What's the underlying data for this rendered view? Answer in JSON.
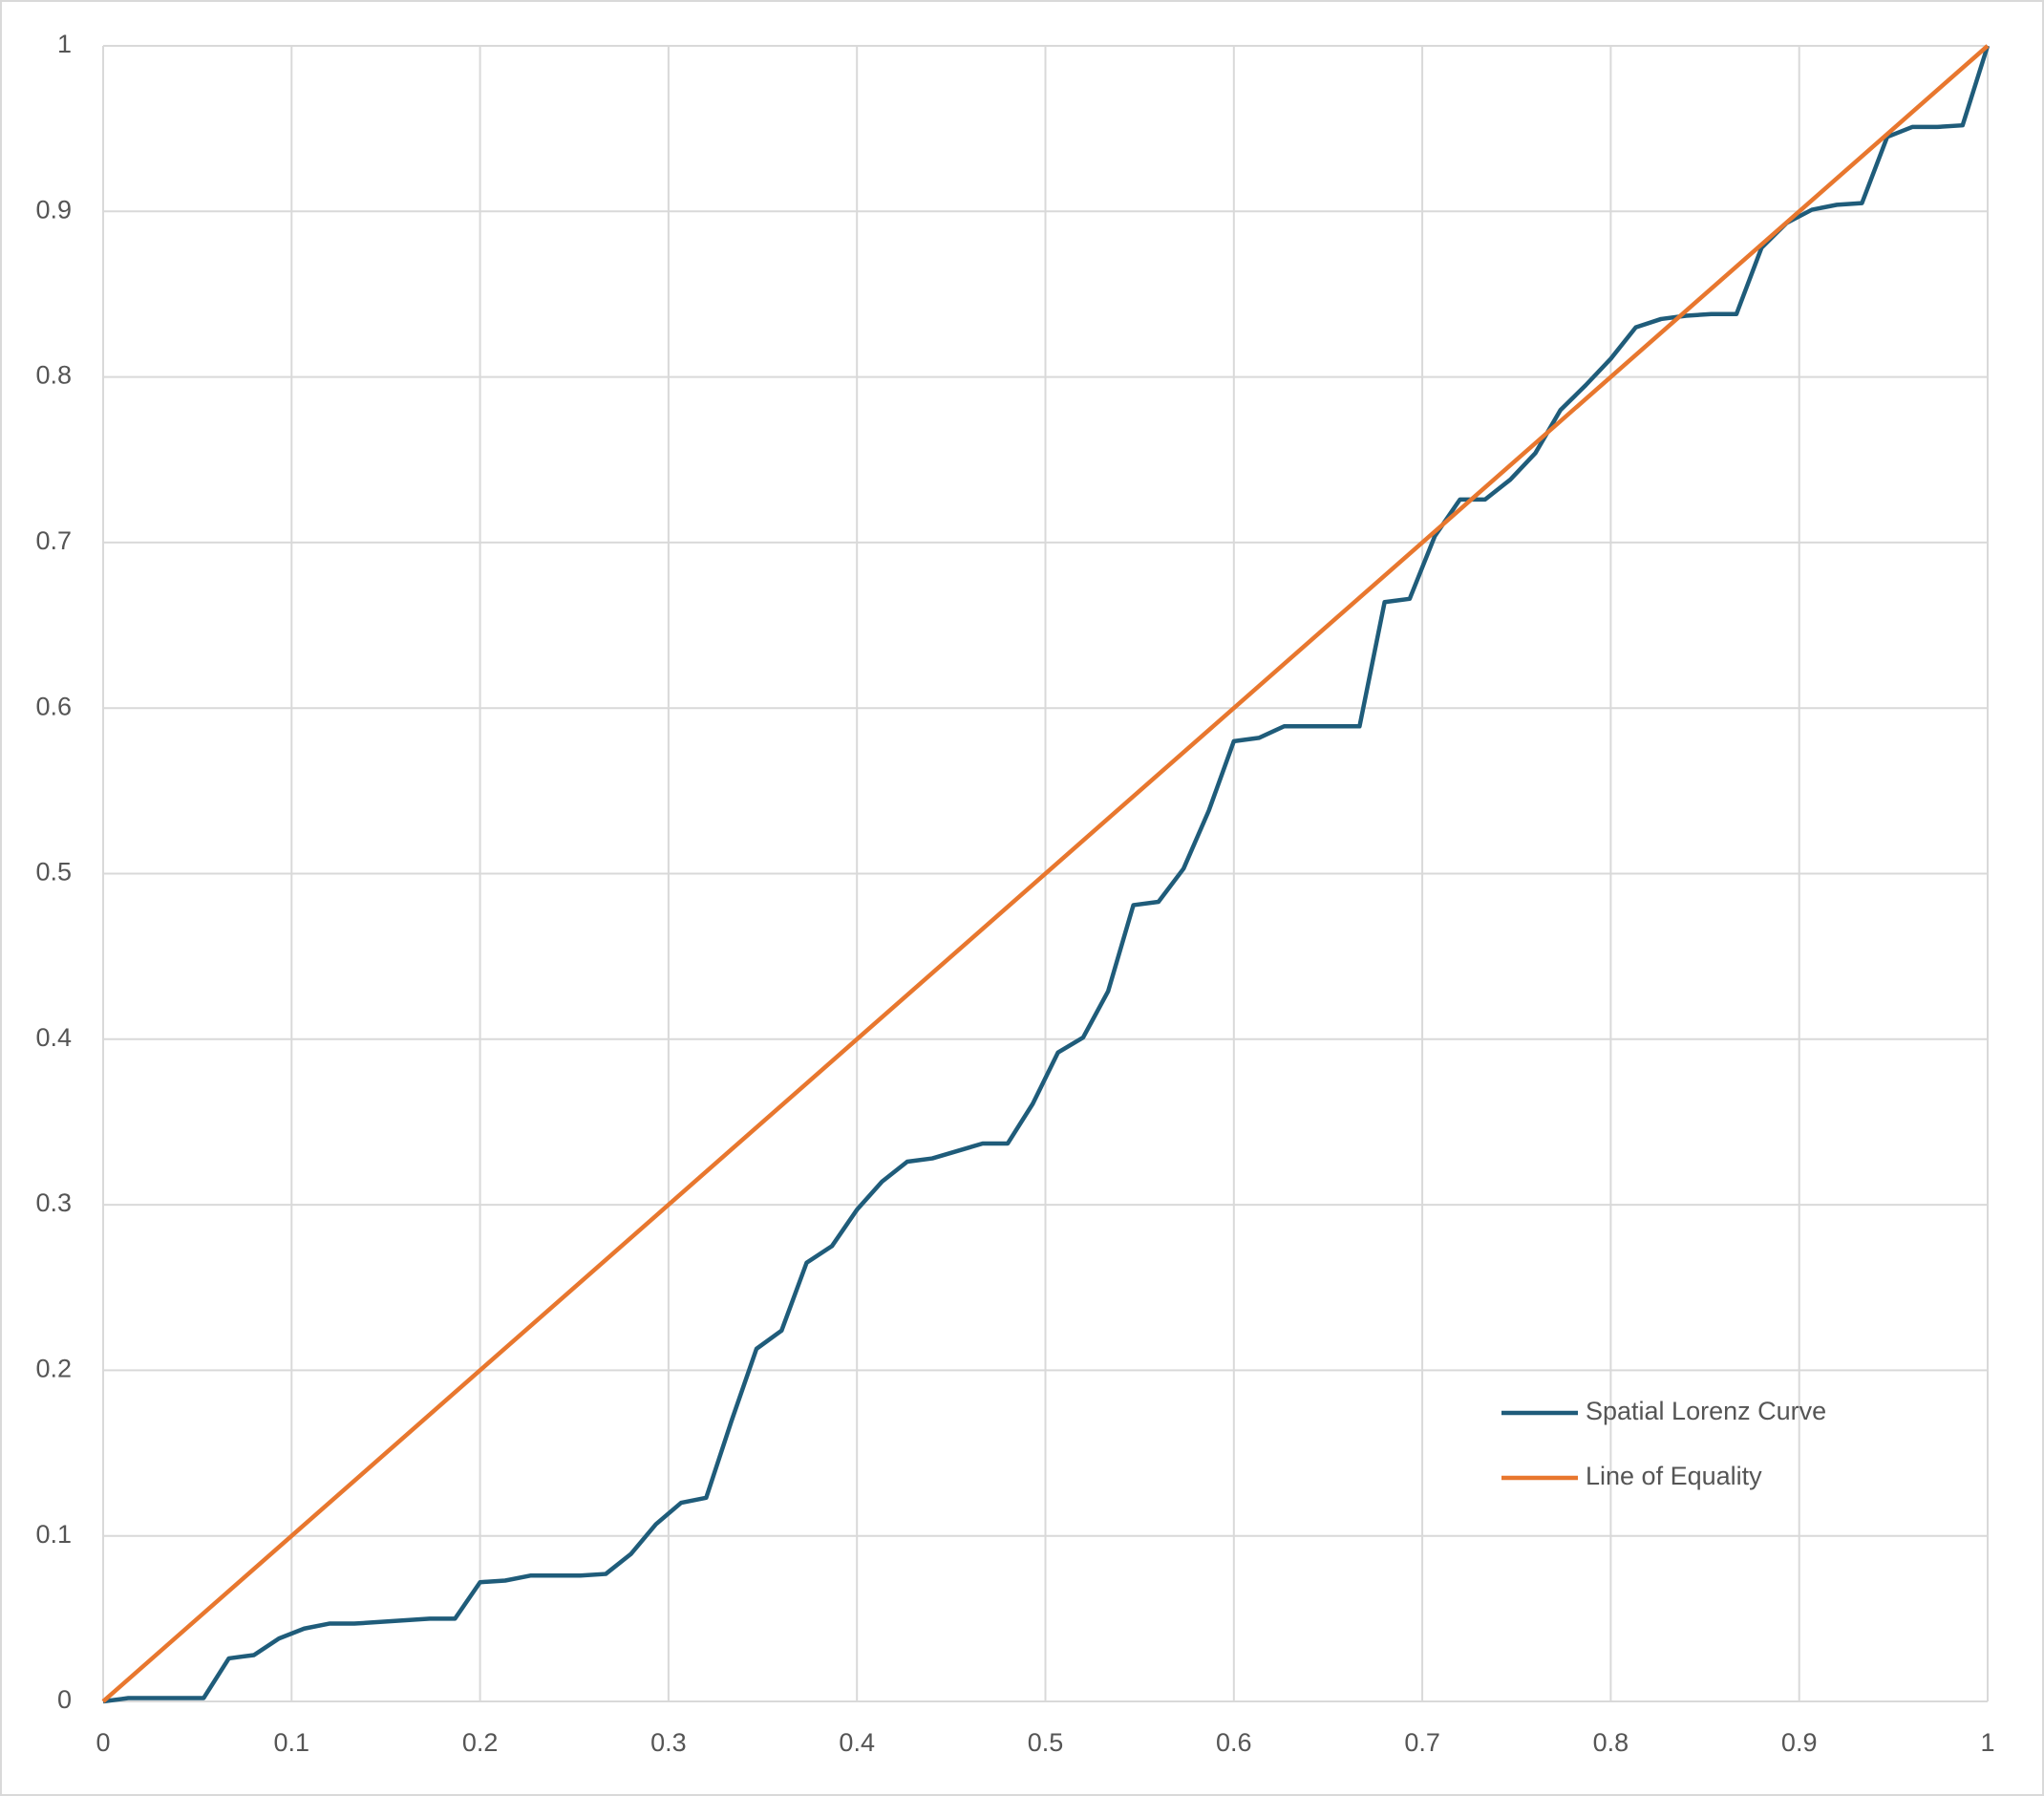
{
  "chart_data": {
    "type": "line",
    "series": [
      {
        "name": "Spatial Lorenz Curve",
        "color": "#1f5c7a",
        "x": [
          0,
          0.0133,
          0.0533,
          0.0667,
          0.08,
          0.0933,
          0.1067,
          0.12,
          0.1333,
          0.1733,
          0.1867,
          0.2,
          0.2133,
          0.2267,
          0.2533,
          0.2667,
          0.28,
          0.2933,
          0.3067,
          0.32,
          0.3333,
          0.3467,
          0.36,
          0.3733,
          0.3867,
          0.4,
          0.4133,
          0.4267,
          0.44,
          0.4667,
          0.48,
          0.4933,
          0.5067,
          0.52,
          0.5333,
          0.5467,
          0.56,
          0.5733,
          0.5867,
          0.6,
          0.6133,
          0.6267,
          0.6667,
          0.68,
          0.6933,
          0.7067,
          0.72,
          0.7333,
          0.7467,
          0.76,
          0.7733,
          0.7867,
          0.8,
          0.8133,
          0.8267,
          0.84,
          0.8533,
          0.8667,
          0.88,
          0.8933,
          0.9067,
          0.92,
          0.9333,
          0.9467,
          0.96,
          0.9733,
          0.9867,
          1
        ],
        "values": [
          0,
          0.002,
          0.002,
          0.026,
          0.028,
          0.038,
          0.044,
          0.047,
          0.047,
          0.05,
          0.05,
          0.072,
          0.073,
          0.076,
          0.076,
          0.077,
          0.089,
          0.107,
          0.12,
          0.123,
          0.169,
          0.213,
          0.224,
          0.265,
          0.275,
          0.297,
          0.314,
          0.326,
          0.328,
          0.337,
          0.337,
          0.361,
          0.392,
          0.401,
          0.429,
          0.481,
          0.483,
          0.503,
          0.538,
          0.58,
          0.582,
          0.589,
          0.589,
          0.664,
          0.666,
          0.704,
          0.726,
          0.726,
          0.738,
          0.754,
          0.78,
          0.795,
          0.811,
          0.83,
          0.835,
          0.837,
          0.838,
          0.838,
          0.878,
          0.893,
          0.901,
          0.904,
          0.905,
          0.945,
          0.951,
          0.951,
          0.952,
          1
        ]
      },
      {
        "name": "Line of Equality",
        "color": "#e8772e",
        "x": [
          0,
          1
        ],
        "values": [
          0,
          1
        ]
      }
    ],
    "xlim": [
      0,
      1
    ],
    "xticks": [
      0,
      0.1,
      0.2,
      0.3,
      0.4,
      0.5,
      0.6,
      0.7,
      0.8,
      0.9,
      1
    ],
    "ylim": [
      0,
      1
    ],
    "yticks": [
      0,
      0.1,
      0.2,
      0.3,
      0.4,
      0.5,
      0.6,
      0.7,
      0.8,
      0.9,
      1
    ],
    "grid": true,
    "legend": "lower-right"
  }
}
